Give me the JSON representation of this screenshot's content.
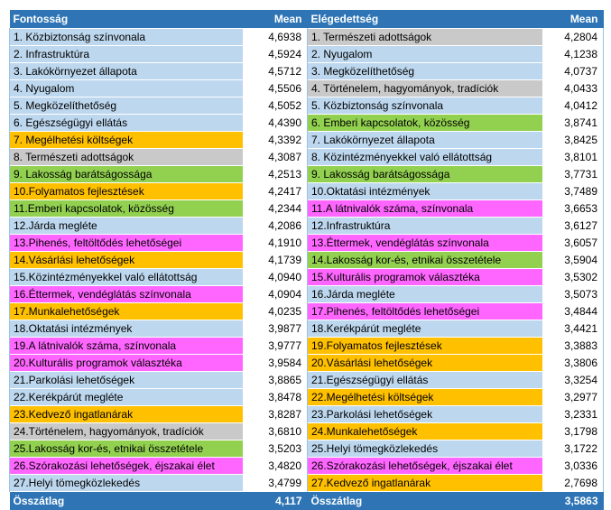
{
  "headers": {
    "col1": "Fontosság",
    "col2": "Mean",
    "col3": "Elégedettség",
    "col4": "Mean"
  },
  "colors": {
    "header": "#2f75b5",
    "blue": "#bdd7ee",
    "orange": "#ffc000",
    "gray": "#c9c9c9",
    "green": "#92d050",
    "pink": "#ff66ff"
  },
  "left": [
    {
      "label": "1.  Közbiztonság színvonala",
      "mean": "4,6938",
      "color": "blue"
    },
    {
      "label": "2.  Infrastruktúra",
      "mean": "4,5924",
      "color": "blue"
    },
    {
      "label": "3.  Lakókörnyezet állapota",
      "mean": "4,5712",
      "color": "blue"
    },
    {
      "label": "4.  Nyugalom",
      "mean": "4,5506",
      "color": "blue"
    },
    {
      "label": "5.  Megközelíthetőség",
      "mean": "4,5052",
      "color": "blue"
    },
    {
      "label": "6.  Egészségügyi ellátás",
      "mean": "4,4390",
      "color": "blue"
    },
    {
      "label": "7.  Megélhetési költségek",
      "mean": "4,3392",
      "color": "orange"
    },
    {
      "label": "8.  Természeti adottságok",
      "mean": "4,3087",
      "color": "gray"
    },
    {
      "label": "9.  Lakosság barátságossága",
      "mean": "4,2513",
      "color": "green"
    },
    {
      "label": "10.Folyamatos fejlesztések",
      "mean": "4,2417",
      "color": "orange"
    },
    {
      "label": "11.Emberi kapcsolatok, közösség",
      "mean": "4,2344",
      "color": "green"
    },
    {
      "label": "12.Járda megléte",
      "mean": "4,2086",
      "color": "blue"
    },
    {
      "label": "13.Pihenés, feltöltődés lehetőségei",
      "mean": "4,1910",
      "color": "pink"
    },
    {
      "label": "14.Vásárlási lehetőségek",
      "mean": "4,1739",
      "color": "orange"
    },
    {
      "label": "15.Közintézményekkel való ellátottság",
      "mean": "4,0940",
      "color": "blue"
    },
    {
      "label": "16.Éttermek, vendéglátás színvonala",
      "mean": "4,0904",
      "color": "pink"
    },
    {
      "label": "17.Munkalehetőségek",
      "mean": "4,0235",
      "color": "orange"
    },
    {
      "label": "18.Oktatási intézmények",
      "mean": "3,9877",
      "color": "blue"
    },
    {
      "label": "19.A látnivalók száma, színvonala",
      "mean": "3,9777",
      "color": "pink"
    },
    {
      "label": "20.Kulturális programok választéka",
      "mean": "3,9584",
      "color": "pink"
    },
    {
      "label": "21.Parkolási lehetőségek",
      "mean": "3,8865",
      "color": "blue"
    },
    {
      "label": "22.Kerékpárút megléte",
      "mean": "3,8478",
      "color": "blue"
    },
    {
      "label": "23.Kedvező ingatlanárak",
      "mean": "3,8287",
      "color": "orange"
    },
    {
      "label": "24.Történelem, hagyományok, tradíciók",
      "mean": "3,6810",
      "color": "gray"
    },
    {
      "label": "25.Lakosság kor-és, etnikai összetétele",
      "mean": "3,5203",
      "color": "green"
    },
    {
      "label": "26.Szórakozási lehetőségek, éjszakai élet",
      "mean": "3,4820",
      "color": "pink"
    },
    {
      "label": "27.Helyi tömegközlekedés",
      "mean": "3,4799",
      "color": "blue"
    }
  ],
  "right": [
    {
      "label": "1.  Természeti adottságok",
      "mean": "4,2804",
      "color": "gray"
    },
    {
      "label": "2.  Nyugalom",
      "mean": "4,1238",
      "color": "blue"
    },
    {
      "label": "3.  Megközelíthetőség",
      "mean": "4,0737",
      "color": "blue"
    },
    {
      "label": "4.  Történelem, hagyományok, tradíciók",
      "mean": "4,0433",
      "color": "gray"
    },
    {
      "label": "5.  Közbiztonság színvonala",
      "mean": "4,0412",
      "color": "blue"
    },
    {
      "label": "6.  Emberi kapcsolatok, közösség",
      "mean": "3,8741",
      "color": "green"
    },
    {
      "label": "7.  Lakókörnyezet állapota",
      "mean": "3,8425",
      "color": "blue"
    },
    {
      "label": "8.  Közintézményekkel való ellátottság",
      "mean": "3,8101",
      "color": "blue"
    },
    {
      "label": "9.  Lakosság barátságossága",
      "mean": "3,7731",
      "color": "green"
    },
    {
      "label": "10.Oktatási intézmények",
      "mean": "3,7489",
      "color": "blue"
    },
    {
      "label": "11.A látnivalók száma, színvonala",
      "mean": "3,6653",
      "color": "pink"
    },
    {
      "label": "12.Infrastruktúra",
      "mean": "3,6127",
      "color": "blue"
    },
    {
      "label": "13.Éttermek, vendéglátás színvonala",
      "mean": "3,6057",
      "color": "pink"
    },
    {
      "label": "14.Lakosság kor-és, etnikai összetétele",
      "mean": "3,5904",
      "color": "green"
    },
    {
      "label": "15.Kulturális programok választéka",
      "mean": "3,5302",
      "color": "pink"
    },
    {
      "label": "16.Járda megléte",
      "mean": "3,5073",
      "color": "blue"
    },
    {
      "label": "17.Pihenés, feltöltődés lehetőségei",
      "mean": "3,4844",
      "color": "pink"
    },
    {
      "label": "18.Kerékpárút megléte",
      "mean": "3,4421",
      "color": "blue"
    },
    {
      "label": "19.Folyamatos fejlesztések",
      "mean": "3,3883",
      "color": "orange"
    },
    {
      "label": "20.Vásárlási lehetőségek",
      "mean": "3,3806",
      "color": "orange"
    },
    {
      "label": "21.Egészségügyi ellátás",
      "mean": "3,3254",
      "color": "blue"
    },
    {
      "label": "22.Megélhetési költségek",
      "mean": "3,2977",
      "color": "orange"
    },
    {
      "label": "23.Parkolási lehetőségek",
      "mean": "3,2331",
      "color": "blue"
    },
    {
      "label": "24.Munkalehetőségek",
      "mean": "3,1798",
      "color": "orange"
    },
    {
      "label": "25.Helyi tömegközlekedés",
      "mean": "3,1722",
      "color": "blue"
    },
    {
      "label": "26.Szórakozási lehetőségek, éjszakai élet",
      "mean": "3,0336",
      "color": "pink"
    },
    {
      "label": "27.Kedvező ingatlanárak",
      "mean": "2,7698",
      "color": "orange"
    }
  ],
  "totals": {
    "left_label": "Összátlag",
    "left_value": "4,117",
    "right_label": "Összátlag",
    "right_value": "3,5863"
  }
}
